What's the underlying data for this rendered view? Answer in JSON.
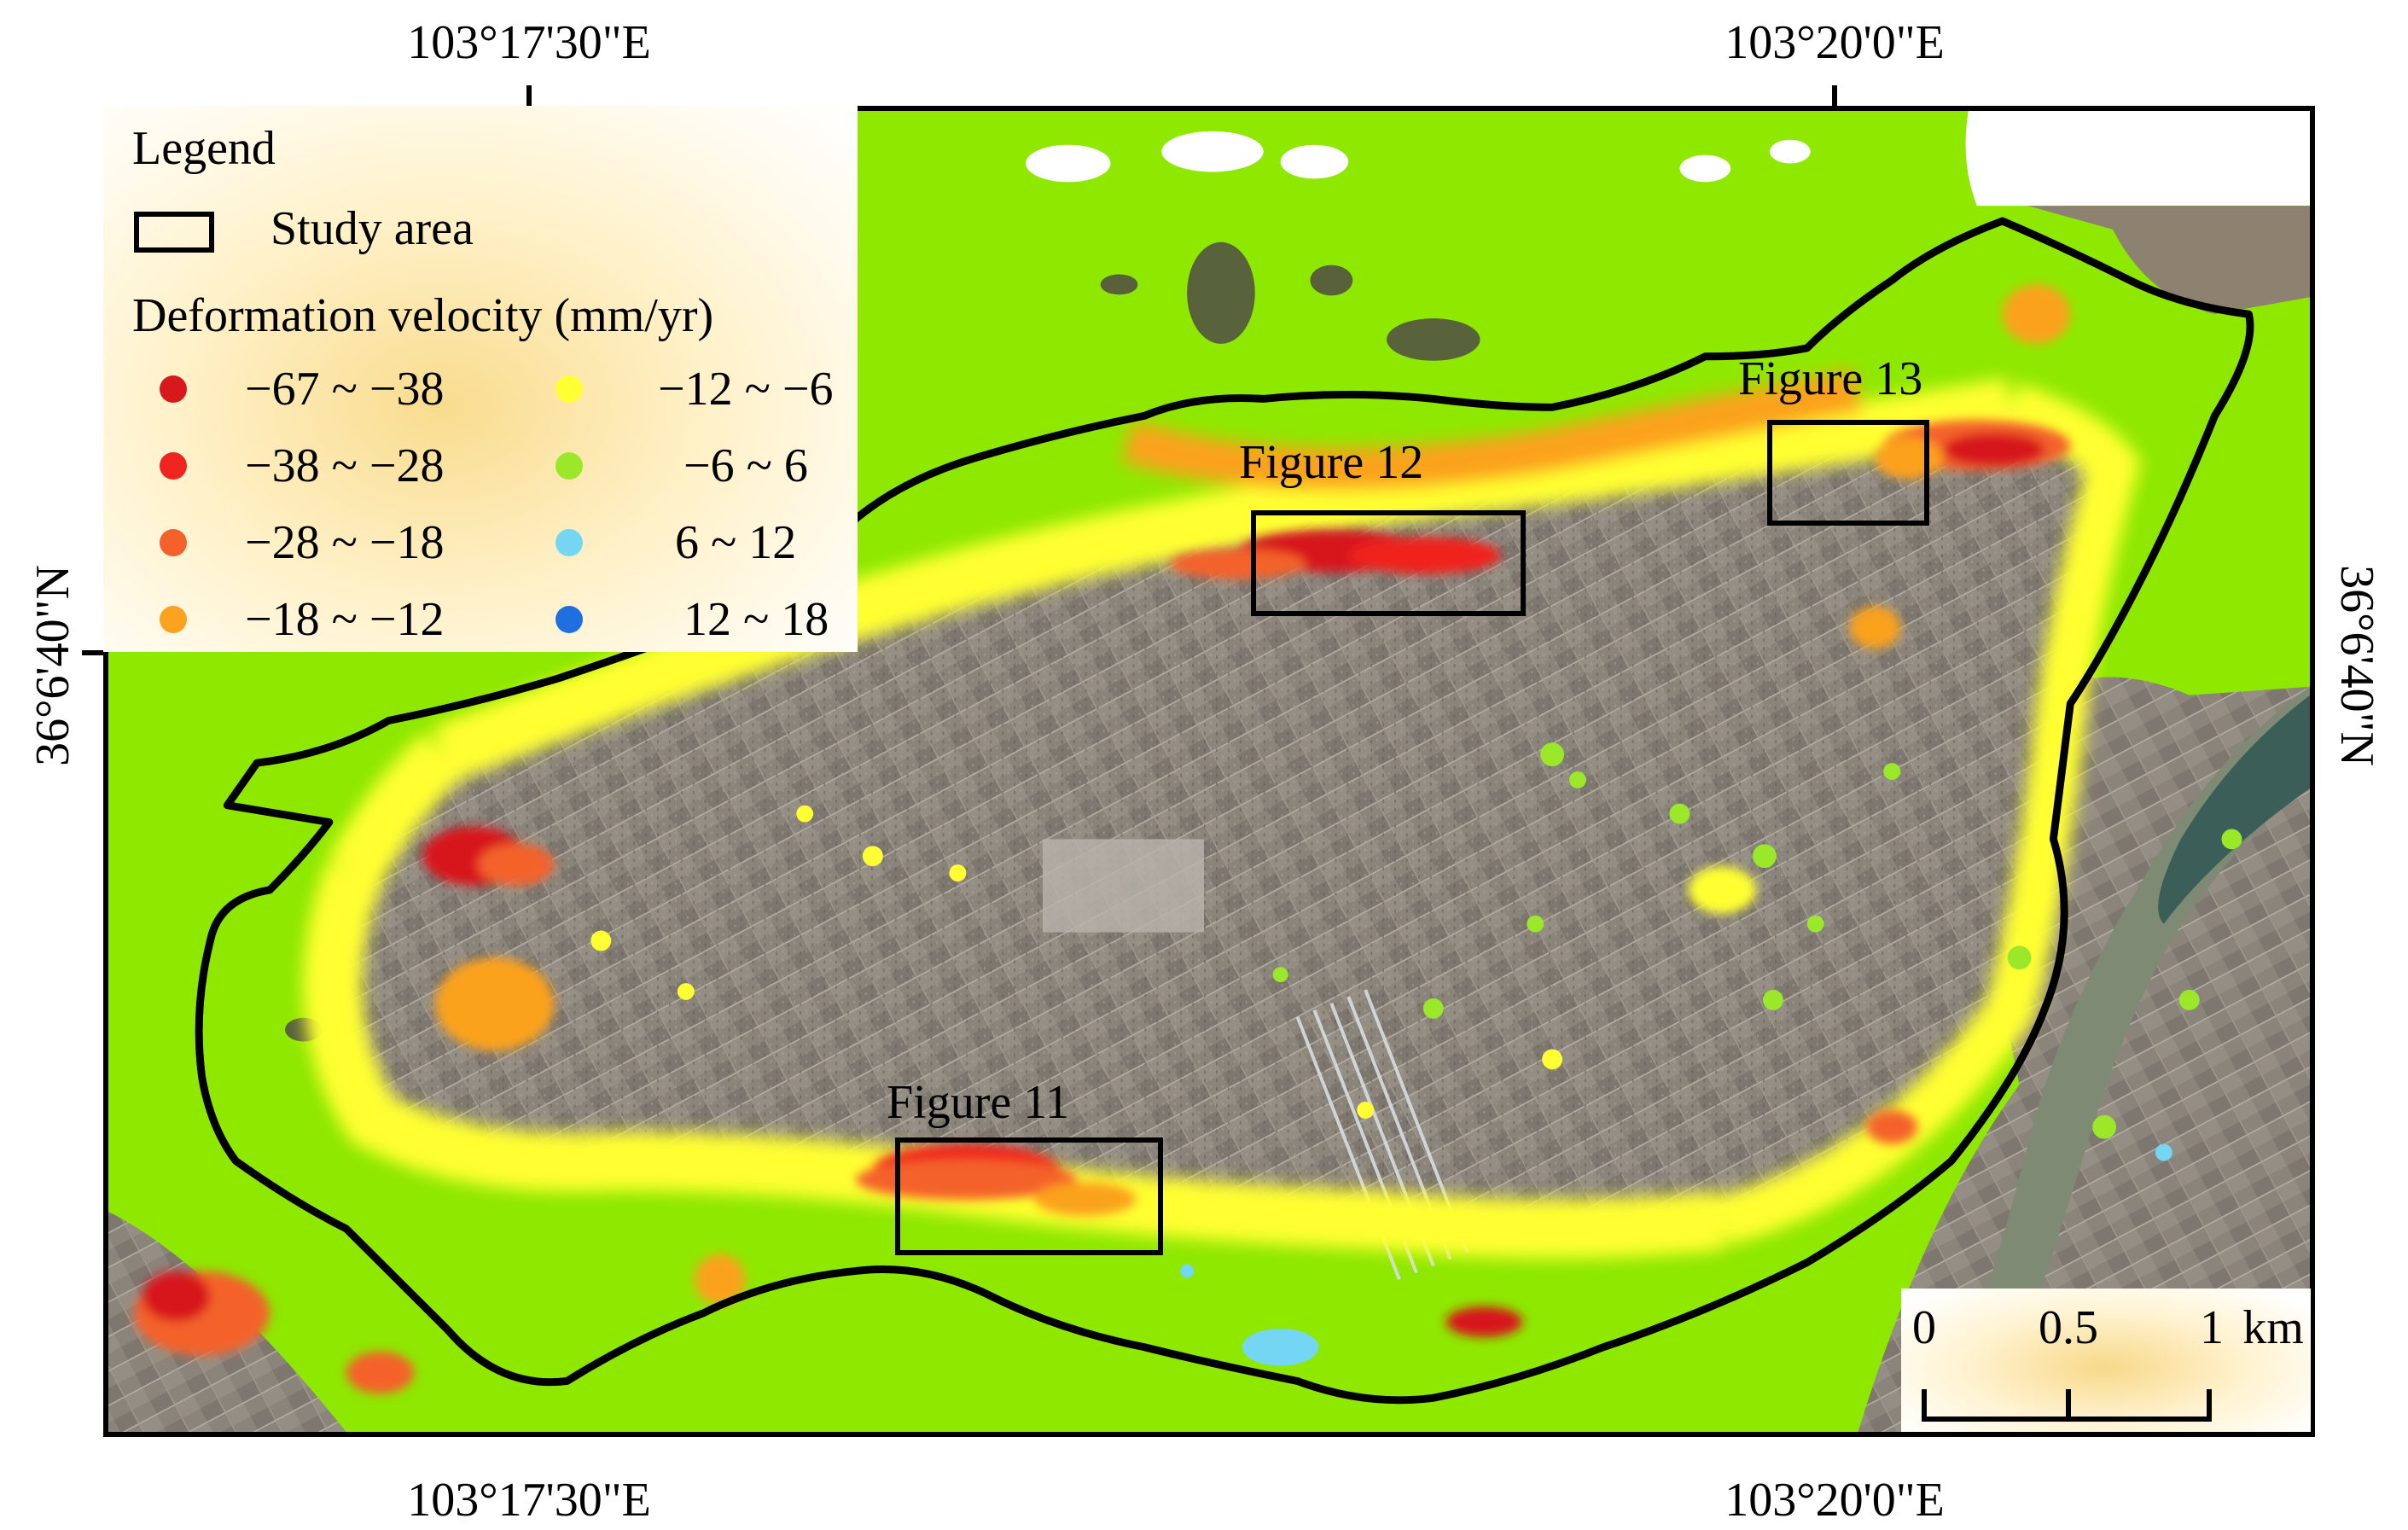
{
  "coordinates": {
    "top": [
      "103°17'30\"E",
      "103°20'0\"E"
    ],
    "bottom": [
      "103°17'30\"E",
      "103°20'0\"E"
    ],
    "left": "36°6'40\"N",
    "right": "36°6'40\"N"
  },
  "legend": {
    "title": "Legend",
    "study_area_label": "Study area",
    "velocity_title": "Deformation velocity (mm/yr)",
    "classes": [
      {
        "label": "−67 ~ −38",
        "color": "#d7191c"
      },
      {
        "label": "−38 ~ −28",
        "color": "#f0241e"
      },
      {
        "label": "−28 ~ −18",
        "color": "#f4622a"
      },
      {
        "label": "−18 ~ −12",
        "color": "#fba21e"
      },
      {
        "label": "−12 ~ −6",
        "color": "#ffff33"
      },
      {
        "label": "−6 ~ 6",
        "color": "#9be82b"
      },
      {
        "label": "6 ~ 12",
        "color": "#74d6f2"
      },
      {
        "label": "12 ~ 18",
        "color": "#1f6fe0"
      }
    ]
  },
  "figure_labels": {
    "fig11": "Figure 11",
    "fig12": "Figure 12",
    "fig13": "Figure 13"
  },
  "scalebar": {
    "labels": [
      "0",
      "0.5",
      "1"
    ],
    "unit": "km"
  }
}
